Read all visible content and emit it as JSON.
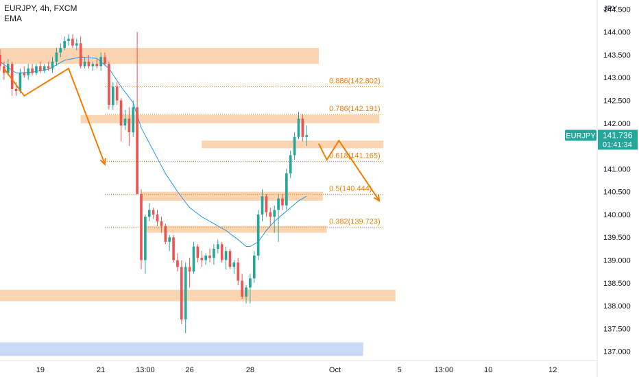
{
  "header": {
    "symbol_line": "EURJPY, 4h, FXCM",
    "indicator": "EMA"
  },
  "chart_data": {
    "type": "candlestick",
    "title": "EURJPY, 4h, FXCM",
    "y_axis_label": "JPY",
    "y_range": [
      136.8,
      144.7
    ],
    "y_ticks": [
      "144.500",
      "144.000",
      "143.500",
      "143.000",
      "142.500",
      "142.000",
      "141.500",
      "141.000",
      "140.500",
      "140.000",
      "139.500",
      "139.000",
      "138.500",
      "138.000",
      "137.500",
      "137.000"
    ],
    "x_range": [
      0,
      148
    ],
    "x_ticks": [
      {
        "label": "19",
        "x": 10
      },
      {
        "label": "21",
        "x": 25
      },
      {
        "label": "13:00",
        "x": 36
      },
      {
        "label": "26",
        "x": 47
      },
      {
        "label": "28",
        "x": 62
      },
      {
        "label": "Oct",
        "x": 83
      },
      {
        "label": "5",
        "x": 99
      },
      {
        "label": "13:00",
        "x": 110
      },
      {
        "label": "10",
        "x": 121
      },
      {
        "label": "12",
        "x": 137
      }
    ],
    "candles": [
      [
        0,
        143.5,
        143.62,
        143.15,
        143.25
      ],
      [
        1,
        143.25,
        143.35,
        142.95,
        143.1
      ],
      [
        2,
        143.1,
        143.4,
        143.05,
        143.3
      ],
      [
        3,
        143.3,
        143.35,
        142.6,
        142.75
      ],
      [
        4,
        142.75,
        142.9,
        142.6,
        142.7
      ],
      [
        5,
        142.7,
        143.2,
        142.65,
        143.1
      ],
      [
        6,
        143.1,
        143.25,
        143.0,
        143.05
      ],
      [
        7,
        143.05,
        143.3,
        142.95,
        143.2
      ],
      [
        8,
        143.2,
        143.3,
        143.05,
        143.1
      ],
      [
        9,
        143.1,
        143.3,
        143.05,
        143.25
      ],
      [
        10,
        143.25,
        143.35,
        143.1,
        143.15
      ],
      [
        11,
        143.15,
        143.3,
        143.1,
        143.25
      ],
      [
        12,
        143.25,
        143.35,
        143.15,
        143.2
      ],
      [
        13,
        143.2,
        143.45,
        143.1,
        143.35
      ],
      [
        14,
        143.35,
        143.65,
        143.25,
        143.55
      ],
      [
        15,
        143.55,
        143.75,
        143.45,
        143.65
      ],
      [
        16,
        143.65,
        143.9,
        143.6,
        143.8
      ],
      [
        17,
        143.8,
        143.95,
        143.7,
        143.85
      ],
      [
        18,
        143.85,
        143.95,
        143.65,
        143.7
      ],
      [
        19,
        143.7,
        143.85,
        143.6,
        143.75
      ],
      [
        20,
        143.75,
        143.9,
        143.2,
        143.25
      ],
      [
        21,
        143.25,
        143.45,
        143.2,
        143.35
      ],
      [
        22,
        143.35,
        143.5,
        143.2,
        143.25
      ],
      [
        23,
        143.25,
        143.35,
        143.15,
        143.3
      ],
      [
        24,
        143.3,
        143.4,
        143.2,
        143.25
      ],
      [
        25,
        143.25,
        143.55,
        143.15,
        143.45
      ],
      [
        26,
        143.45,
        143.55,
        143.25,
        143.3
      ],
      [
        27,
        143.3,
        143.35,
        142.3,
        142.4
      ],
      [
        28,
        142.4,
        142.9,
        142.3,
        142.8
      ],
      [
        29,
        142.8,
        142.9,
        142.4,
        142.5
      ],
      [
        30,
        142.5,
        142.55,
        141.6,
        141.95
      ],
      [
        31,
        141.95,
        142.3,
        141.85,
        142.1
      ],
      [
        32,
        142.1,
        142.35,
        141.5,
        141.8
      ],
      [
        33,
        141.8,
        142.5,
        141.7,
        142.35
      ],
      [
        34,
        142.35,
        144.0,
        140.5,
        140.45
      ],
      [
        35,
        140.45,
        140.55,
        138.8,
        139.0
      ],
      [
        36,
        139.0,
        140.0,
        138.7,
        139.95
      ],
      [
        37,
        139.95,
        140.25,
        139.85,
        140.1
      ],
      [
        38,
        140.1,
        140.15,
        139.9,
        140.0
      ],
      [
        39,
        140.0,
        140.1,
        139.75,
        139.85
      ],
      [
        40,
        139.85,
        139.95,
        139.6,
        139.75
      ],
      [
        41,
        139.75,
        139.8,
        139.35,
        139.4
      ],
      [
        42,
        139.4,
        139.55,
        139.2,
        139.5
      ],
      [
        43,
        139.5,
        139.55,
        138.95,
        139.0
      ],
      [
        44,
        139.0,
        139.15,
        138.75,
        138.85
      ],
      [
        45,
        138.85,
        139.0,
        137.6,
        137.7
      ],
      [
        46,
        137.7,
        138.95,
        137.4,
        138.85
      ],
      [
        47,
        138.85,
        139.05,
        138.4,
        138.75
      ],
      [
        48,
        138.75,
        139.4,
        138.7,
        139.3
      ],
      [
        49,
        139.3,
        139.35,
        138.95,
        139.05
      ],
      [
        50,
        139.05,
        139.2,
        138.85,
        139.0
      ],
      [
        51,
        139.0,
        139.15,
        138.9,
        139.1
      ],
      [
        52,
        139.1,
        139.25,
        138.95,
        139.05
      ],
      [
        53,
        139.05,
        139.35,
        138.9,
        139.25
      ],
      [
        54,
        139.25,
        139.45,
        139.15,
        139.35
      ],
      [
        55,
        139.35,
        139.4,
        138.95,
        139.0
      ],
      [
        56,
        139.0,
        139.3,
        138.8,
        139.2
      ],
      [
        57,
        139.2,
        139.25,
        138.8,
        138.85
      ],
      [
        58,
        138.85,
        139.0,
        138.7,
        138.95
      ],
      [
        59,
        138.95,
        139.05,
        138.45,
        138.55
      ],
      [
        60,
        138.55,
        138.7,
        138.15,
        138.2
      ],
      [
        61,
        138.2,
        138.45,
        138.05,
        138.4
      ],
      [
        62,
        138.4,
        138.7,
        138.05,
        138.6
      ],
      [
        63,
        138.6,
        139.2,
        138.5,
        139.1
      ],
      [
        64,
        139.1,
        140.1,
        139.0,
        140.0
      ],
      [
        65,
        140.0,
        140.55,
        139.85,
        140.4
      ],
      [
        66,
        140.4,
        140.45,
        139.95,
        140.05
      ],
      [
        67,
        140.05,
        140.15,
        139.75,
        139.95
      ],
      [
        68,
        139.95,
        140.2,
        139.6,
        140.1
      ],
      [
        69,
        140.1,
        140.45,
        139.4,
        140.35
      ],
      [
        70,
        140.35,
        140.45,
        140.1,
        140.2
      ],
      [
        71,
        140.2,
        141.0,
        140.1,
        140.9
      ],
      [
        72,
        140.9,
        141.4,
        140.8,
        141.3
      ],
      [
        73,
        141.3,
        141.8,
        141.2,
        141.7
      ],
      [
        74,
        141.7,
        142.25,
        141.65,
        142.1
      ],
      [
        75,
        142.1,
        142.2,
        141.6,
        141.7
      ],
      [
        76,
        141.7,
        141.95,
        141.5,
        141.74
      ]
    ],
    "ema_series": [
      [
        0,
        143.35
      ],
      [
        4,
        143.1
      ],
      [
        8,
        143.12
      ],
      [
        12,
        143.18
      ],
      [
        16,
        143.38
      ],
      [
        20,
        143.45
      ],
      [
        24,
        143.42
      ],
      [
        27,
        143.2
      ],
      [
        30,
        142.8
      ],
      [
        33,
        142.45
      ],
      [
        35,
        141.9
      ],
      [
        38,
        141.4
      ],
      [
        41,
        140.9
      ],
      [
        44,
        140.5
      ],
      [
        47,
        140.15
      ],
      [
        50,
        139.95
      ],
      [
        53,
        139.8
      ],
      [
        56,
        139.65
      ],
      [
        59,
        139.45
      ],
      [
        61,
        139.3
      ],
      [
        62,
        139.3
      ],
      [
        64,
        139.4
      ],
      [
        66,
        139.65
      ],
      [
        68,
        139.85
      ],
      [
        70,
        140.0
      ],
      [
        72,
        140.15
      ],
      [
        74,
        140.3
      ],
      [
        76,
        140.4
      ]
    ],
    "zones": [
      {
        "x0": 0,
        "x1": 79,
        "y0": 143.3,
        "y1": 143.65,
        "color": "#fbd5b2"
      },
      {
        "x0": 20,
        "x1": 94,
        "y0": 142.0,
        "y1": 142.18,
        "color": "#fbd5b2"
      },
      {
        "x0": 50,
        "x1": 95,
        "y0": 141.45,
        "y1": 141.62,
        "color": "#fbd5b2"
      },
      {
        "x0": 35,
        "x1": 80,
        "y0": 140.3,
        "y1": 140.5,
        "color": "#fbd5b2"
      },
      {
        "x0": 36,
        "x1": 81,
        "y0": 139.6,
        "y1": 139.75,
        "color": "#fbd5b2"
      },
      {
        "x0": 0,
        "x1": 98,
        "y0": 138.1,
        "y1": 138.35,
        "color": "#fbd5b2"
      },
      {
        "x0": 0,
        "x1": 90,
        "y0": 136.9,
        "y1": 137.2,
        "color": "#c9daf8"
      }
    ],
    "fib_levels": [
      {
        "label": "0.886(142.802)",
        "value": 142.802
      },
      {
        "label": "0.786(142.191)",
        "value": 142.191
      },
      {
        "label": "0.618(141.165)",
        "value": 141.165
      },
      {
        "label": "0.5(140.444)",
        "value": 140.444
      },
      {
        "label": "0.382(139.723)",
        "value": 139.723
      }
    ],
    "fib_x_range": [
      26,
      95
    ],
    "arrows": [
      {
        "points": [
          [
            1,
            143.2
          ],
          [
            6,
            142.6
          ],
          [
            17,
            143.2
          ],
          [
            26,
            141.1
          ]
        ]
      },
      {
        "points": [
          [
            79,
            141.55
          ],
          [
            81,
            141.2
          ],
          [
            84,
            141.62
          ],
          [
            94,
            140.3
          ]
        ]
      }
    ],
    "price_label": {
      "symbol": "EURJPY",
      "price": "141.736",
      "countdown": "01:41:34",
      "value": 141.736,
      "color": "#26a69a"
    },
    "colors": {
      "up": "#26a69a",
      "down": "#ef5350",
      "ema": "#2196f3",
      "fib": "#f57c00",
      "arrow": "#f57c00"
    }
  }
}
